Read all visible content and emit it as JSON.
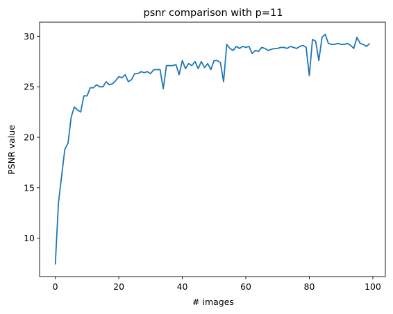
{
  "chart_data": {
    "type": "line",
    "title": "psnr comparison with p=11",
    "xlabel": "# images",
    "ylabel": "PSNR value",
    "xlim": [
      -4.95,
      103.95
    ],
    "ylim": [
      6.2,
      31.4
    ],
    "xticks": [
      0,
      20,
      40,
      60,
      80,
      100
    ],
    "yticks": [
      10,
      15,
      20,
      25,
      30
    ],
    "grid": false,
    "series": [
      {
        "color": "#1f77b4",
        "x": [
          0,
          1,
          2,
          3,
          4,
          5,
          6,
          7,
          8,
          9,
          10,
          11,
          12,
          13,
          14,
          15,
          16,
          17,
          18,
          19,
          20,
          21,
          22,
          23,
          24,
          25,
          26,
          27,
          28,
          29,
          30,
          31,
          32,
          33,
          34,
          35,
          36,
          37,
          38,
          39,
          40,
          41,
          42,
          43,
          44,
          45,
          46,
          47,
          48,
          49,
          50,
          51,
          52,
          53,
          54,
          55,
          56,
          57,
          58,
          59,
          60,
          61,
          62,
          63,
          64,
          65,
          66,
          67,
          68,
          69,
          70,
          71,
          72,
          73,
          74,
          75,
          76,
          77,
          78,
          79,
          80,
          81,
          82,
          83,
          84,
          85,
          86,
          87,
          88,
          89,
          90,
          91,
          92,
          93,
          94,
          95,
          96,
          97,
          98,
          99
        ],
        "values": [
          7.4,
          13.5,
          16.2,
          18.8,
          19.4,
          22.0,
          23.0,
          22.7,
          22.5,
          24.1,
          24.1,
          24.9,
          24.9,
          25.2,
          25.0,
          25.0,
          25.5,
          25.2,
          25.3,
          25.6,
          26.0,
          25.9,
          26.2,
          25.5,
          25.7,
          26.3,
          26.3,
          26.5,
          26.4,
          26.5,
          26.3,
          26.7,
          26.7,
          26.7,
          24.8,
          27.1,
          27.1,
          27.1,
          27.2,
          26.2,
          27.6,
          26.8,
          27.3,
          27.1,
          27.5,
          26.8,
          27.5,
          26.9,
          27.3,
          26.7,
          27.6,
          27.6,
          27.4,
          25.5,
          29.2,
          28.8,
          28.6,
          29.0,
          28.8,
          29.0,
          28.9,
          29.0,
          28.3,
          28.6,
          28.5,
          28.9,
          28.8,
          28.6,
          28.7,
          28.8,
          28.8,
          28.9,
          28.9,
          28.8,
          29.0,
          28.9,
          28.8,
          29.0,
          29.1,
          28.9,
          26.1,
          29.7,
          29.5,
          27.6,
          29.9,
          30.2,
          29.3,
          29.2,
          29.2,
          29.3,
          29.2,
          29.2,
          29.3,
          29.1,
          28.8,
          29.9,
          29.3,
          29.2,
          29.0,
          29.3
        ]
      }
    ]
  }
}
